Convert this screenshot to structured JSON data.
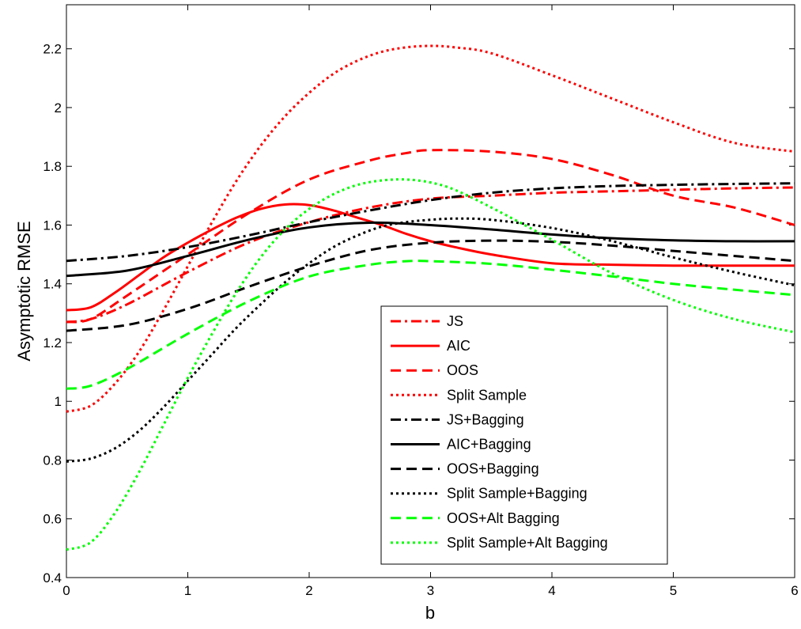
{
  "chart_data": {
    "type": "line",
    "title": "",
    "xlabel": "b",
    "ylabel": "Asymptotic RMSE",
    "xlim": [
      0,
      6
    ],
    "ylim": [
      0.4,
      2.35
    ],
    "xticks": [
      0,
      1,
      2,
      3,
      4,
      5,
      6
    ],
    "xtick_labels": [
      "0",
      "1",
      "2",
      "3",
      "4",
      "5",
      "6"
    ],
    "yticks": [
      0.4,
      0.6,
      0.8,
      1.0,
      1.2,
      1.4,
      1.6,
      1.8,
      2.0,
      2.2
    ],
    "ytick_labels": [
      "0.4",
      "0.6",
      "0.8",
      "1",
      "1.2",
      "1.4",
      "1.6",
      "1.8",
      "2",
      "2.2"
    ],
    "grid": false,
    "legend_position": "bottom-right",
    "series": [
      {
        "name": "JS",
        "color": "#ff0000",
        "dash": "dashdot",
        "x": [
          0,
          0.2,
          0.5,
          1.0,
          1.5,
          2.0,
          2.5,
          3.0,
          3.5,
          4.0,
          4.5,
          5.0,
          5.5,
          6.0
        ],
        "y": [
          1.27,
          1.28,
          1.33,
          1.44,
          1.54,
          1.61,
          1.66,
          1.69,
          1.7,
          1.71,
          1.715,
          1.72,
          1.725,
          1.728
        ]
      },
      {
        "name": "AIC",
        "color": "#ff0000",
        "dash": "solid",
        "x": [
          0,
          0.2,
          0.4,
          0.6,
          0.8,
          1.0,
          1.2,
          1.4,
          1.6,
          1.8,
          2.0,
          2.2,
          2.4,
          2.6,
          2.8,
          3.0,
          3.2,
          3.5,
          4.0,
          4.5,
          5.0,
          5.5,
          6.0
        ],
        "y": [
          1.31,
          1.32,
          1.37,
          1.43,
          1.49,
          1.54,
          1.585,
          1.625,
          1.655,
          1.67,
          1.668,
          1.65,
          1.625,
          1.6,
          1.57,
          1.545,
          1.525,
          1.5,
          1.47,
          1.465,
          1.462,
          1.462,
          1.462
        ]
      },
      {
        "name": "OOS",
        "color": "#ff0000",
        "dash": "dash",
        "x": [
          0,
          0.2,
          0.5,
          1.0,
          1.5,
          2.0,
          2.5,
          2.8,
          3.0,
          3.5,
          4.0,
          4.5,
          5.0,
          5.5,
          6.0
        ],
        "y": [
          1.27,
          1.28,
          1.36,
          1.5,
          1.64,
          1.755,
          1.82,
          1.845,
          1.855,
          1.85,
          1.825,
          1.77,
          1.7,
          1.66,
          1.6
        ]
      },
      {
        "name": "Split Sample",
        "color": "#ff0000",
        "dash": "dot",
        "x": [
          0,
          0.2,
          0.4,
          0.6,
          0.8,
          1.0,
          1.2,
          1.4,
          1.6,
          1.8,
          2.0,
          2.2,
          2.4,
          2.6,
          2.8,
          3.0,
          3.2,
          3.5,
          4.0,
          4.5,
          5.0,
          5.5,
          6.0
        ],
        "y": [
          0.965,
          0.985,
          1.06,
          1.17,
          1.31,
          1.46,
          1.61,
          1.75,
          1.87,
          1.97,
          2.05,
          2.115,
          2.16,
          2.19,
          2.205,
          2.21,
          2.205,
          2.185,
          2.11,
          2.03,
          1.95,
          1.88,
          1.85
        ]
      },
      {
        "name": "JS+Bagging",
        "color": "#000000",
        "dash": "dashdot",
        "x": [
          0,
          0.5,
          1.0,
          1.5,
          2.0,
          2.5,
          3.0,
          3.5,
          4.0,
          4.5,
          5.0,
          5.5,
          6.0
        ],
        "y": [
          1.478,
          1.495,
          1.525,
          1.565,
          1.61,
          1.65,
          1.685,
          1.71,
          1.725,
          1.733,
          1.737,
          1.74,
          1.742
        ]
      },
      {
        "name": "AIC+Bagging",
        "color": "#000000",
        "dash": "solid",
        "x": [
          0,
          0.5,
          1.0,
          1.5,
          2.0,
          2.5,
          3.0,
          3.5,
          4.0,
          4.5,
          5.0,
          5.5,
          6.0
        ],
        "y": [
          1.427,
          1.445,
          1.495,
          1.55,
          1.592,
          1.608,
          1.6,
          1.585,
          1.568,
          1.555,
          1.548,
          1.545,
          1.545
        ]
      },
      {
        "name": "OOS+Bagging",
        "color": "#000000",
        "dash": "dash",
        "x": [
          0,
          0.5,
          1.0,
          1.5,
          2.0,
          2.5,
          3.0,
          3.5,
          4.0,
          4.5,
          5.0,
          5.5,
          6.0
        ],
        "y": [
          1.24,
          1.26,
          1.315,
          1.39,
          1.46,
          1.515,
          1.54,
          1.547,
          1.543,
          1.53,
          1.512,
          1.495,
          1.478
        ]
      },
      {
        "name": "Split Sample+Bagging",
        "color": "#000000",
        "dash": "dot",
        "x": [
          0,
          0.2,
          0.4,
          0.6,
          0.8,
          1.0,
          1.2,
          1.4,
          1.6,
          1.8,
          2.0,
          2.2,
          2.4,
          2.6,
          2.8,
          3.0,
          3.2,
          3.5,
          4.0,
          4.5,
          5.0,
          5.5,
          6.0
        ],
        "y": [
          0.795,
          0.805,
          0.84,
          0.9,
          0.98,
          1.07,
          1.16,
          1.25,
          1.33,
          1.405,
          1.47,
          1.525,
          1.565,
          1.595,
          1.61,
          1.618,
          1.622,
          1.618,
          1.59,
          1.545,
          1.49,
          1.44,
          1.395
        ]
      },
      {
        "name": "OOS+Alt Bagging",
        "color": "#00ff00",
        "dash": "dash",
        "x": [
          0,
          0.2,
          0.5,
          1.0,
          1.5,
          2.0,
          2.5,
          2.8,
          3.0,
          3.5,
          4.0,
          4.5,
          5.0,
          5.5,
          6.0
        ],
        "y": [
          1.043,
          1.053,
          1.11,
          1.23,
          1.34,
          1.425,
          1.465,
          1.477,
          1.477,
          1.468,
          1.448,
          1.425,
          1.4,
          1.38,
          1.362
        ]
      },
      {
        "name": "Split Sample+Alt Bagging",
        "color": "#00ff00",
        "dash": "dot",
        "x": [
          0,
          0.2,
          0.4,
          0.6,
          0.8,
          1.0,
          1.2,
          1.4,
          1.6,
          1.8,
          2.0,
          2.2,
          2.4,
          2.6,
          2.8,
          3.0,
          3.2,
          3.5,
          4.0,
          4.5,
          5.0,
          5.5,
          6.0
        ],
        "y": [
          0.495,
          0.52,
          0.62,
          0.76,
          0.92,
          1.08,
          1.23,
          1.37,
          1.49,
          1.585,
          1.655,
          1.705,
          1.737,
          1.752,
          1.755,
          1.745,
          1.72,
          1.66,
          1.55,
          1.435,
          1.345,
          1.28,
          1.235
        ]
      }
    ]
  }
}
